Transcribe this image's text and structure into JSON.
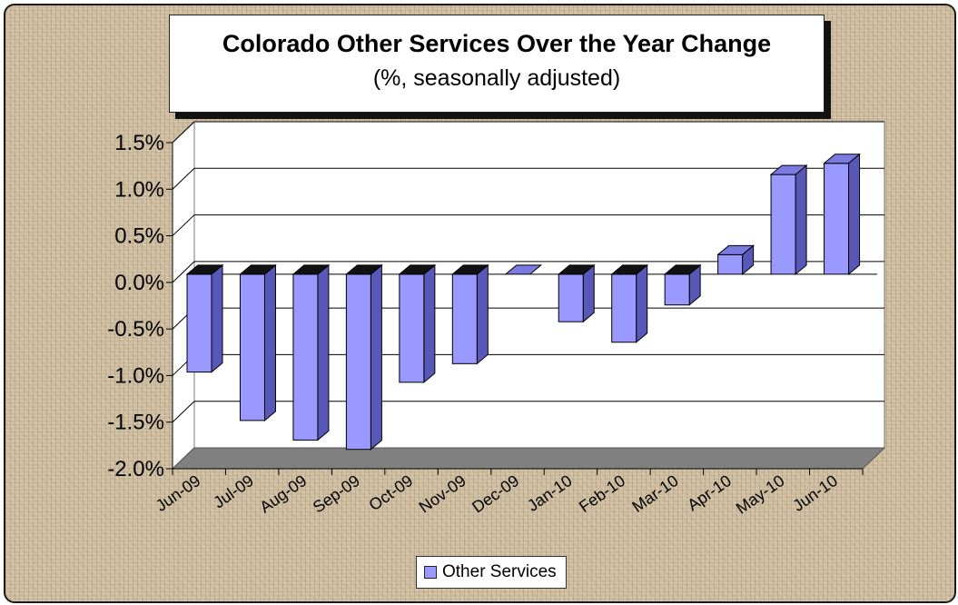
{
  "chart_data": {
    "type": "bar",
    "title": "Colorado Other Services Over the Year Change",
    "subtitle": "(%, seasonally adjusted)",
    "xlabel": "",
    "ylabel": "",
    "categories": [
      "Jun-09",
      "Jul-09",
      "Aug-09",
      "Sep-09",
      "Oct-09",
      "Nov-09",
      "Dec-09",
      "Jan-10",
      "Feb-10",
      "Mar-10",
      "Apr-10",
      "May-10",
      "Jun-10"
    ],
    "series": [
      {
        "name": "Other Services",
        "values": [
          -1.05,
          -1.57,
          -1.78,
          -1.88,
          -1.16,
          -0.96,
          0.0,
          -0.51,
          -0.73,
          -0.33,
          0.21,
          1.07,
          1.19
        ]
      }
    ],
    "ylim": [
      -2.0,
      1.5
    ],
    "yticks": [
      1.5,
      1.0,
      0.5,
      0.0,
      -0.5,
      -1.0,
      -1.5,
      -2.0
    ],
    "ytick_labels": [
      "1.5%",
      "1.0%",
      "0.5%",
      "0.0%",
      "-0.5%",
      "-1.0%",
      "-1.5%",
      "-2.0%"
    ],
    "grid": true,
    "style": "3d-column",
    "legend_position": "bottom",
    "colors": {
      "bar": "#9999ff",
      "bar_side": "#5858b8",
      "bar_top": "#7a7ae0",
      "floor": "#808080",
      "background": "#cbb99b"
    }
  }
}
